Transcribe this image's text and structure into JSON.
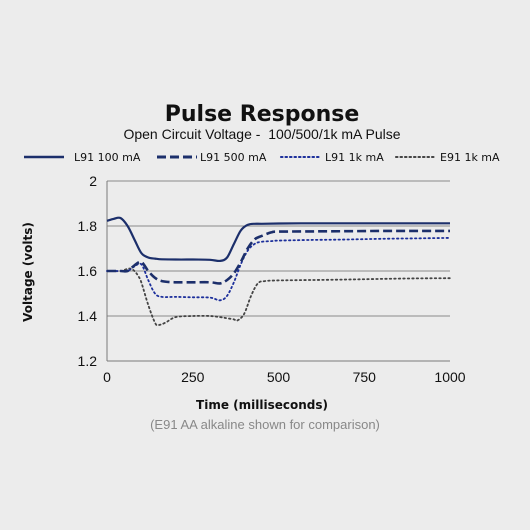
{
  "chart_data": {
    "type": "line",
    "title": "Pulse Response",
    "subtitle": "Open Circuit Voltage -  100/500/1k mA Pulse",
    "xlabel": "Time (milliseconds)",
    "ylabel": "Voltage (volts)",
    "footnote": "(E91 AA alkaline shown for comparison)",
    "xlim": [
      0,
      1000
    ],
    "ylim": [
      1.2,
      2
    ],
    "x_ticks": [
      "0",
      "250",
      "500",
      "750",
      "1000"
    ],
    "y_ticks": [
      "1.2",
      "1.4",
      "1.6",
      "1.8",
      "2"
    ],
    "grid": "horizontal",
    "legend_position": "top",
    "series": [
      {
        "name": "L91 100 mA",
        "color": "#1c2f6b",
        "style": "solid",
        "x": [
          0,
          20,
          40,
          60,
          80,
          100,
          120,
          140,
          160,
          200,
          250,
          300,
          330,
          350,
          370,
          390,
          410,
          430,
          450,
          500,
          600,
          700,
          800,
          900,
          1000
        ],
        "y": [
          1.823,
          1.832,
          1.835,
          1.8,
          1.74,
          1.68,
          1.66,
          1.655,
          1.652,
          1.651,
          1.651,
          1.65,
          1.645,
          1.66,
          1.72,
          1.78,
          1.805,
          1.81,
          1.81,
          1.811,
          1.812,
          1.812,
          1.812,
          1.812,
          1.812
        ]
      },
      {
        "name": "L91 500 mA",
        "color": "#1c2f6b",
        "style": "dashed",
        "x": [
          0,
          40,
          60,
          80,
          100,
          120,
          140,
          160,
          200,
          250,
          300,
          330,
          350,
          370,
          390,
          410,
          430,
          450,
          480,
          500,
          600,
          700,
          800,
          900,
          1000
        ],
        "y": [
          1.6,
          1.6,
          1.6,
          1.625,
          1.64,
          1.6,
          1.57,
          1.555,
          1.55,
          1.55,
          1.55,
          1.545,
          1.56,
          1.59,
          1.64,
          1.7,
          1.74,
          1.755,
          1.772,
          1.775,
          1.776,
          1.777,
          1.778,
          1.778,
          1.778
        ]
      },
      {
        "name": "L91 1k mA",
        "color": "#1c2f9b",
        "style": "dotted",
        "x": [
          0,
          40,
          60,
          80,
          100,
          120,
          140,
          160,
          200,
          250,
          300,
          330,
          350,
          370,
          390,
          410,
          430,
          450,
          480,
          500,
          600,
          700,
          800,
          900,
          1000
        ],
        "y": [
          1.6,
          1.6,
          1.6,
          1.62,
          1.63,
          1.56,
          1.5,
          1.485,
          1.485,
          1.483,
          1.482,
          1.47,
          1.49,
          1.55,
          1.63,
          1.69,
          1.72,
          1.73,
          1.733,
          1.735,
          1.738,
          1.74,
          1.743,
          1.745,
          1.747
        ]
      },
      {
        "name": "E91 1k mA",
        "color": "#444444",
        "style": "dotted",
        "x": [
          0,
          40,
          60,
          70,
          80,
          90,
          100,
          120,
          140,
          150,
          170,
          200,
          250,
          300,
          330,
          350,
          370,
          380,
          400,
          420,
          440,
          460,
          500,
          600,
          700,
          800,
          900,
          1000
        ],
        "y": [
          1.6,
          1.6,
          1.61,
          1.61,
          1.6,
          1.58,
          1.55,
          1.45,
          1.37,
          1.36,
          1.37,
          1.395,
          1.4,
          1.4,
          1.395,
          1.39,
          1.385,
          1.38,
          1.41,
          1.49,
          1.545,
          1.555,
          1.558,
          1.56,
          1.562,
          1.565,
          1.567,
          1.568
        ]
      }
    ]
  }
}
